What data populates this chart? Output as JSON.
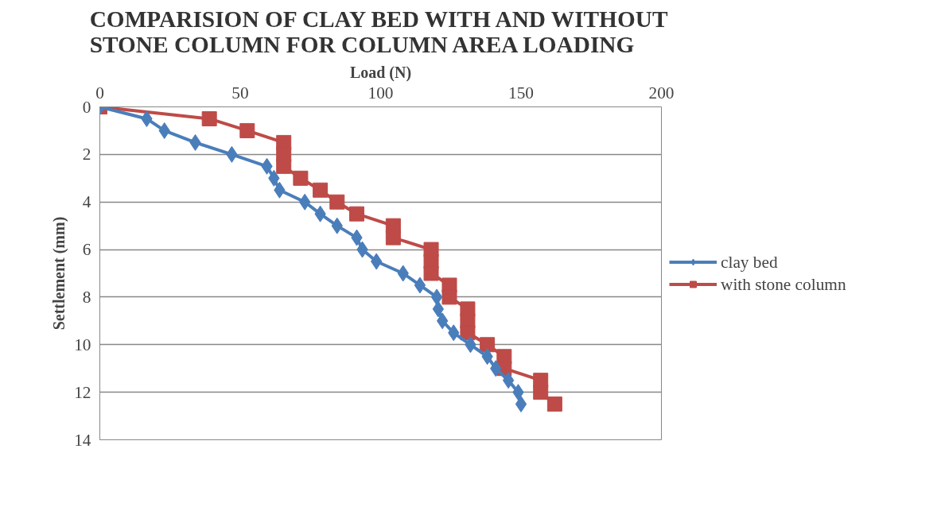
{
  "chart_data": {
    "type": "line",
    "title": "COMPARISION OF CLAY BED WITH AND WITHOUT\nSTONE COLUMN FOR COLUMN AREA LOADING",
    "xlabel": "Load (N)",
    "ylabel": "Settlement (mm)",
    "xlim": [
      0,
      200
    ],
    "xticks": [
      0,
      50,
      100,
      150,
      200
    ],
    "ylim": [
      14,
      0
    ],
    "yticks": [
      0,
      2,
      4,
      6,
      8,
      10,
      12,
      14
    ],
    "grid": "y",
    "legend": "right",
    "line_style": "solid",
    "series": [
      {
        "name": "clay bed",
        "color": "#4a7ebb",
        "marker": "diamond",
        "x": [
          0,
          16.7,
          23,
          34,
          47,
          59.5,
          62,
          64,
          73,
          78.5,
          84.5,
          91.5,
          93.5,
          98.5,
          108,
          114,
          120,
          120.5,
          122,
          126,
          132,
          138,
          141,
          145.5,
          149,
          150
        ],
        "values": [
          0,
          0.5,
          1,
          1.5,
          2,
          2.5,
          3,
          3.5,
          4,
          4.5,
          5,
          5.5,
          6,
          6.5,
          7,
          7.5,
          8,
          8.5,
          9,
          9.5,
          10,
          10.5,
          11,
          11.5,
          12,
          12.5
        ]
      },
      {
        "name": "with stone column",
        "color": "#be4b48",
        "marker": "square",
        "x": [
          0,
          39,
          52.5,
          65.5,
          65.5,
          65.5,
          71.5,
          78.5,
          84.5,
          91.5,
          104.5,
          104.5,
          118,
          118,
          118,
          124.5,
          124.5,
          131,
          131,
          131,
          138,
          144,
          144,
          157,
          157,
          162
        ],
        "values": [
          0,
          0.5,
          1,
          1.5,
          2,
          2.5,
          3,
          3.5,
          4,
          4.5,
          5,
          5.5,
          6,
          6.5,
          7,
          7.5,
          8,
          8.5,
          9,
          9.5,
          10,
          10.5,
          11,
          11.5,
          12,
          12.5
        ]
      }
    ]
  }
}
